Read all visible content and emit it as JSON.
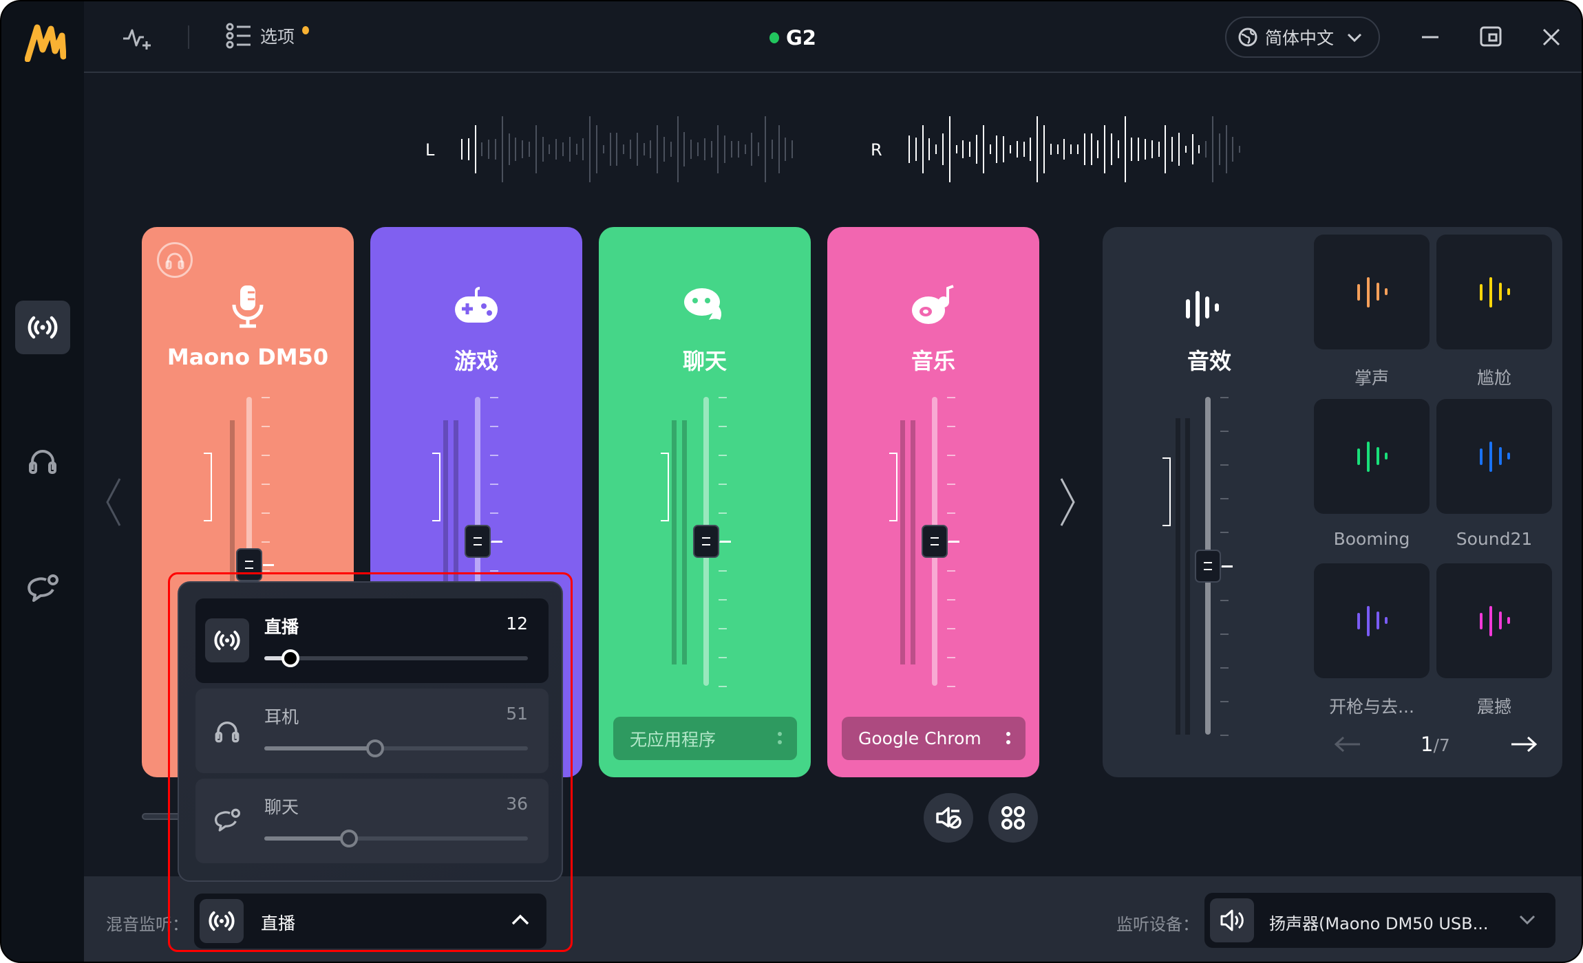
{
  "app": {
    "device_name": "G2",
    "device_status_color": "#22c55e",
    "brand_color": "#f9b233"
  },
  "toolbar": {
    "options_label": "选项",
    "options_badge_color": "#f9b233",
    "language": "简体中文"
  },
  "sidebar": {
    "items": [
      {
        "name": "live-broadcast",
        "icon": "broadcast-icon",
        "active": true
      },
      {
        "name": "headphones",
        "icon": "headphones-icon",
        "active": false
      },
      {
        "name": "chat",
        "icon": "chat-bubble-icon",
        "active": false
      }
    ]
  },
  "meter": {
    "left_label": "L",
    "right_label": "R"
  },
  "channels": [
    {
      "title": "Maono DM50",
      "icon": "microphone-icon",
      "color": "#f78f78",
      "volume": 0.42,
      "app": ""
    },
    {
      "title": "游戏",
      "icon": "gamepad-icon",
      "color": "#8060f0",
      "volume": 0.5,
      "app": ""
    },
    {
      "title": "聊天",
      "icon": "chat-icon",
      "color": "#45d688",
      "volume": 0.5,
      "app": "无应用程序"
    },
    {
      "title": "音乐",
      "icon": "music-disc-icon",
      "color": "#f266b0",
      "volume": 0.5,
      "app": "Google Chrom"
    }
  ],
  "effects": {
    "title": "音效",
    "volume": 0.5,
    "items": [
      {
        "label": "掌声",
        "color": "#f7a05a"
      },
      {
        "label": "尴尬",
        "color": "#ffd60a"
      },
      {
        "label": "Booming",
        "color": "#19e07a"
      },
      {
        "label": "Sound21",
        "color": "#1a73f5"
      },
      {
        "label": "开枪与去...",
        "color": "#7a5cf5"
      },
      {
        "label": "震撼",
        "color": "#f23ad8"
      }
    ],
    "page_current": "1",
    "page_total": "/7"
  },
  "popup": {
    "rows": [
      {
        "label": "直播",
        "value": "12",
        "level": 0.1,
        "active": true
      },
      {
        "label": "耳机",
        "value": "51",
        "level": 0.42,
        "active": false
      },
      {
        "label": "聊天",
        "value": "36",
        "level": 0.32,
        "active": false
      }
    ]
  },
  "bottom": {
    "mix_monitor_label": "混音监听：",
    "mix_monitor_value": "直播",
    "monitor_device_label": "监听设备：",
    "monitor_device_value": "扬声器(Maono DM50 USB..."
  }
}
